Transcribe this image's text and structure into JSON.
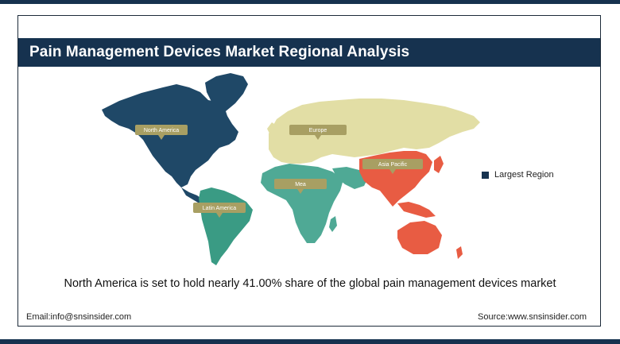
{
  "header": {
    "title": "Pain Management Devices Market Regional Analysis"
  },
  "map": {
    "regions": [
      {
        "label": "North America",
        "color": "#1f4867"
      },
      {
        "label": "Europe",
        "color": "#e2dea5"
      },
      {
        "label": "Asia Pacific",
        "color": "#e85c43"
      },
      {
        "label": "Mea",
        "color": "#4fa995"
      },
      {
        "label": "Latin America",
        "color": "#3a9b84"
      }
    ],
    "callout_color": "#a89f63",
    "australia_color": "#e85c43"
  },
  "legend": {
    "label": "Largest Region",
    "color": "#16324f"
  },
  "headline": "North America is set to hold nearly 41.00% share of the global pain management devices market",
  "footer": {
    "email": "Email:info@snsinsider.com",
    "source": "Source:www.snsinsider.com"
  }
}
